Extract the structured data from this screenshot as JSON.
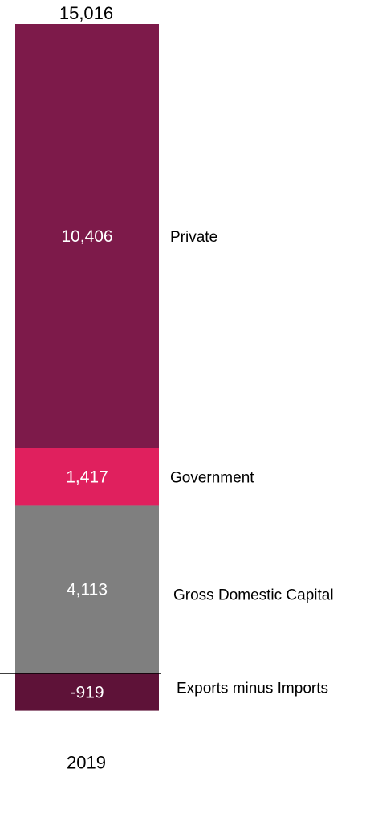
{
  "chart_data": {
    "type": "bar",
    "stacked": true,
    "categories": [
      "2019"
    ],
    "total_label": "15,016",
    "series": [
      {
        "name": "Private",
        "value": 10406,
        "value_label": "10,406",
        "color": "#7d1a4a"
      },
      {
        "name": "Government",
        "value": 1417,
        "value_label": "1,417",
        "color": "#e0205e"
      },
      {
        "name": "Gross Domestic Capital",
        "value": 4113,
        "value_label": "4,113",
        "color": "#7f7f7f"
      },
      {
        "name": "Exports minus Imports",
        "value": -919,
        "value_label": "-919",
        "color": "#5e1238"
      }
    ],
    "xlabel": "",
    "ylabel": "",
    "grid": false,
    "legend": "right-of-bar"
  }
}
